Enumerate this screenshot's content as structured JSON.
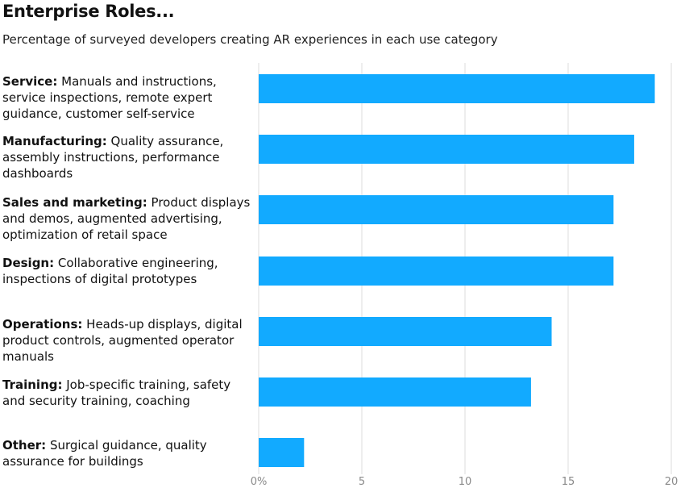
{
  "chart_data": {
    "type": "bar",
    "orientation": "horizontal",
    "title": "Enterprise Roles...",
    "subtitle": "Percentage of surveyed developers creating AR experiences in each use category",
    "categories": [
      {
        "name": "Service:",
        "desc": "Manuals and instructions, service inspections, remote expert guidance, customer self-service"
      },
      {
        "name": "Manufacturing:",
        "desc": "Quality assurance, assembly instructions, performance dashboards"
      },
      {
        "name": "Sales and marketing:",
        "desc": "Product displays and demos, augmented advertising, optimization of retail space"
      },
      {
        "name": "Design:",
        "desc": "Collaborative engineering, inspections of digital prototypes"
      },
      {
        "name": "Operations:",
        "desc": "Heads-up displays, digital product controls, augmented operator manuals"
      },
      {
        "name": "Training:",
        "desc": "Job-specific training, safety and security training, coaching"
      },
      {
        "name": "Other:",
        "desc": "Surgical guidance, quality assurance for buildings"
      }
    ],
    "values": [
      19.2,
      18.2,
      17.2,
      17.2,
      14.2,
      13.2,
      2.2
    ],
    "xlim": [
      0,
      20
    ],
    "xticks": [
      0,
      5,
      10,
      15,
      20
    ],
    "xtick_labels": [
      "0%",
      "5",
      "10",
      "15",
      "20"
    ],
    "grid": "vertical",
    "bar_color": "#12aaff",
    "grid_color": "#dddddd"
  }
}
